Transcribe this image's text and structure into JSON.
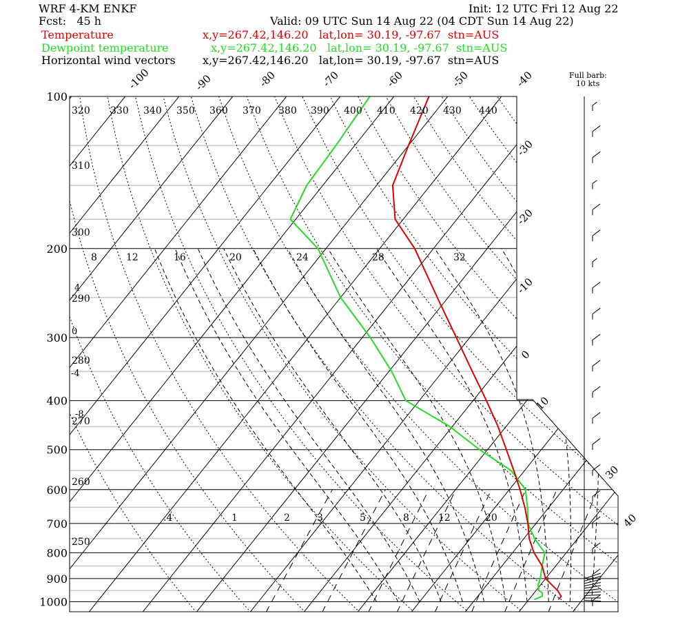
{
  "header": {
    "model": "WRF 4-KM ENKF",
    "init": "Init: 12 UTC Fri 12 Aug 22",
    "fcst": "Fcst:   45 h",
    "valid": "Valid: 09 UTC Sun 14 Aug 22 (04 CDT Sun 14 Aug 22)",
    "line_temp_label": "Temperature",
    "line_temp_info": "x,y=267.42,146.20   lat,lon= 30.19, -97.67  stn=AUS",
    "line_dew_label": "Dewpoint temperature",
    "line_dew_info": "x,y=267.42,146.20   lat,lon= 30.19, -97.67  stn=AUS",
    "line_wind_label": "Horizontal wind vectors",
    "line_wind_info": "x,y=267.42,146.20   lat,lon= 30.19, -97.67  stn=AUS",
    "barb_note_1": "Full barb:",
    "barb_note_2": "10 kts"
  },
  "colors": {
    "temperature": "#e00000",
    "dewpoint": "#22dd22",
    "wind": "#000000",
    "grid": "#000000",
    "light_isobar": "#b0b0b0"
  },
  "chart_data": {
    "type": "line",
    "subtype": "skew-T log-P sounding",
    "pressure_ticks": [
      "100",
      "200",
      "300",
      "400",
      "500",
      "600",
      "700",
      "800",
      "900",
      "1000"
    ],
    "pressure_values": [
      100,
      200,
      300,
      400,
      500,
      600,
      700,
      800,
      900,
      1000
    ],
    "isotherm_labels": [
      "-100",
      "-90",
      "-80",
      "-70",
      "-60",
      "-50",
      "-40",
      "-30",
      "-20",
      "-10",
      "0",
      "10",
      "30",
      "40"
    ],
    "isotherm_values": [
      -100,
      -90,
      -80,
      -70,
      -60,
      -50,
      -40,
      -30,
      -20,
      -10,
      0,
      10,
      30,
      40
    ],
    "theta_labels_top": [
      "320",
      "330",
      "340",
      "350",
      "360",
      "370",
      "380",
      "390",
      "400",
      "410",
      "420",
      "430",
      "440"
    ],
    "theta_labels_left": [
      "310",
      "300",
      "290",
      "280",
      "270",
      "260",
      "250"
    ],
    "theta_e_labels": [
      "8",
      "12",
      "16",
      "20",
      "24",
      "28",
      "32"
    ],
    "theta_e_left_labels": [
      "4",
      "0",
      "-4",
      "-8"
    ],
    "mixing_ratio_labels": [
      ".4",
      "1",
      "2",
      "3",
      "5",
      "8",
      "12",
      "20"
    ],
    "series": [
      {
        "name": "Temperature",
        "pressure": [
          990,
          975,
          950,
          925,
          900,
          850,
          800,
          750,
          700,
          650,
          600,
          550,
          500,
          450,
          400,
          350,
          300,
          250,
          200,
          175,
          150,
          125,
          100
        ],
        "temperature_c": [
          25.5,
          25.5,
          24.0,
          22.0,
          20.0,
          17.5,
          14.0,
          11.0,
          8.5,
          5.5,
          2.0,
          -2.0,
          -6.5,
          -11.5,
          -17.5,
          -24.5,
          -32.5,
          -42.0,
          -53.5,
          -61.5,
          -67.0,
          -70.0,
          -73.5
        ]
      },
      {
        "name": "Dewpoint temperature",
        "pressure": [
          990,
          975,
          960,
          950,
          925,
          900,
          850,
          800,
          750,
          700,
          650,
          600,
          550,
          500,
          450,
          400,
          350,
          300,
          250,
          200,
          175,
          150,
          125,
          100
        ],
        "dewpoint_c": [
          21.0,
          22.0,
          21.5,
          20.5,
          19.5,
          19.0,
          17.5,
          16.0,
          12.0,
          8.5,
          6.0,
          3.0,
          -2.5,
          -11.5,
          -20.5,
          -32.5,
          -39.5,
          -48.5,
          -60.0,
          -71.5,
          -81.0,
          -83.0,
          -83.5,
          -84.5
        ]
      }
    ],
    "wind_speed_kts": [
      5,
      10,
      10,
      5,
      10,
      10,
      5,
      10,
      10,
      10,
      10,
      10,
      10,
      10,
      10,
      10,
      10,
      10,
      10,
      10
    ]
  }
}
